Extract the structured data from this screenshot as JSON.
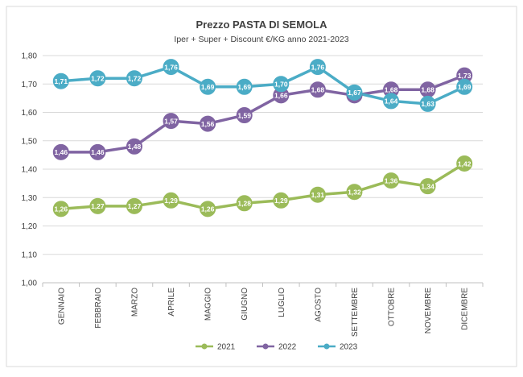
{
  "chart_data": {
    "type": "line",
    "title": "Prezzo PASTA DI SEMOLA",
    "subtitle": "Iper + Super + Discount  €/KG anno 2021-2023",
    "xlabel": "",
    "ylabel": "",
    "categories": [
      "GENNAIO",
      "FEBBRAIO",
      "MARZO",
      "APRILE",
      "MAGGIO",
      "GIUGNO",
      "LUGLIO",
      "AGOSTO",
      "SETTEMBRE",
      "OTTOBRE",
      "NOVEMBRE",
      "DICEMBRE"
    ],
    "ylim": [
      1.0,
      1.8
    ],
    "yticks": [
      "1,00",
      "1,10",
      "1,20",
      "1,30",
      "1,40",
      "1,50",
      "1,60",
      "1,70",
      "1,80"
    ],
    "grid": true,
    "legend_position": "bottom",
    "series": [
      {
        "name": "2021",
        "color": "#9BBB59",
        "values": [
          1.26,
          1.27,
          1.27,
          1.29,
          1.26,
          1.28,
          1.29,
          1.31,
          1.32,
          1.36,
          1.34,
          1.42
        ],
        "labels": [
          "1,26",
          "1,27",
          "1,27",
          "1,29",
          "1,26",
          "1,28",
          "1,29",
          "1,31",
          "1,32",
          "1,36",
          "1,34",
          "1,42"
        ],
        "label_position": "center"
      },
      {
        "name": "2022",
        "color": "#8064A2",
        "values": [
          1.46,
          1.46,
          1.48,
          1.57,
          1.56,
          1.59,
          1.66,
          1.68,
          1.66,
          1.68,
          1.68,
          1.73
        ],
        "labels": [
          "1,46",
          "1,46",
          "1,48",
          "1,57",
          "1,56",
          "1,59",
          "1,66",
          "1,68",
          "1,66",
          "1,68",
          "1,68",
          "1,73"
        ],
        "label_position": "center"
      },
      {
        "name": "2023",
        "color": "#4BACC6",
        "values": [
          1.71,
          1.72,
          1.72,
          1.76,
          1.69,
          1.69,
          1.7,
          1.76,
          1.67,
          1.64,
          1.63,
          1.69
        ],
        "labels": [
          "1,71",
          "1,72",
          "1,72",
          "1,76",
          "1,69",
          "1,69",
          "1,70",
          "1,76",
          "1,67",
          "1,64",
          "1,63",
          "1,69"
        ],
        "label_position": "center"
      }
    ]
  }
}
